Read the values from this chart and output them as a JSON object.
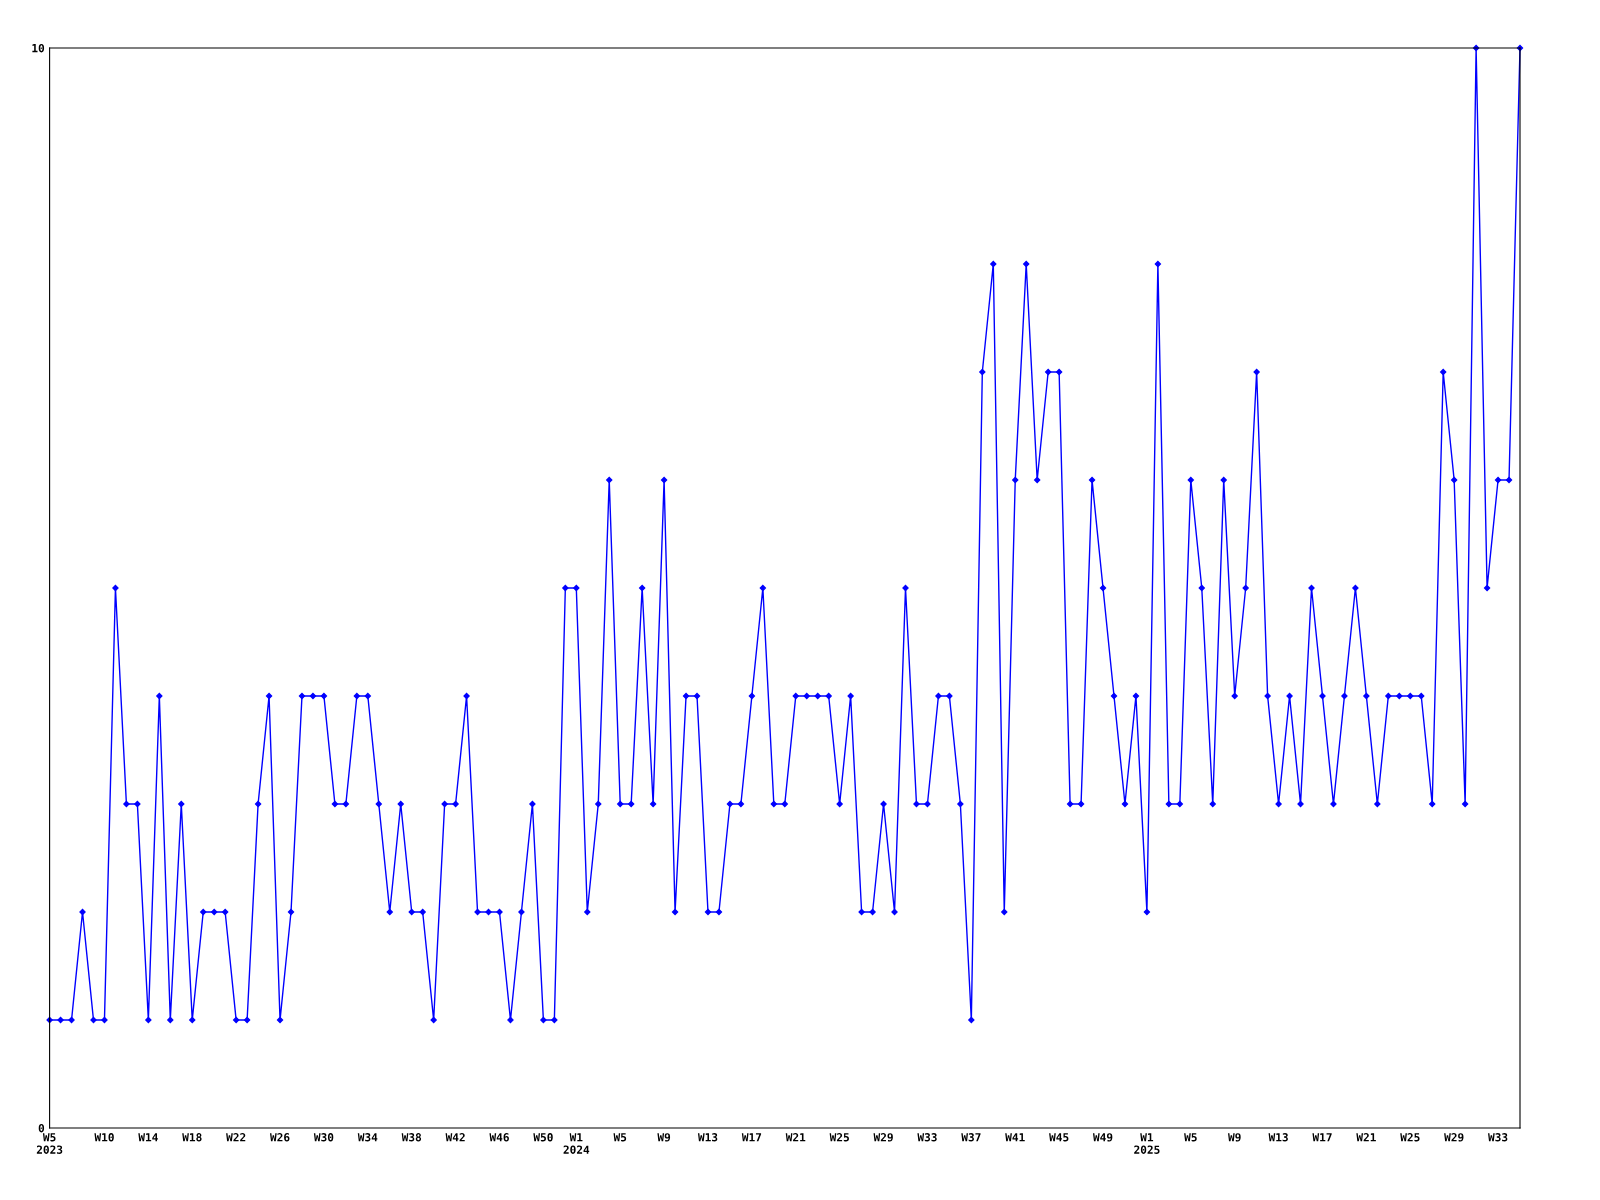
{
  "chart_data": {
    "type": "line",
    "categories": [
      "W5\n2023",
      null,
      null,
      null,
      null,
      "W10",
      null,
      null,
      null,
      "W14",
      null,
      null,
      null,
      "W18",
      null,
      null,
      null,
      "W22",
      null,
      null,
      null,
      "W26",
      null,
      null,
      null,
      "W30",
      null,
      null,
      null,
      "W34",
      null,
      null,
      null,
      "W38",
      null,
      null,
      null,
      "W42",
      null,
      null,
      null,
      "W46",
      null,
      null,
      null,
      "W50",
      null,
      null,
      "W1\n2024",
      null,
      null,
      null,
      "W5",
      null,
      null,
      null,
      "W9",
      null,
      null,
      null,
      "W13",
      null,
      null,
      null,
      "W17",
      null,
      null,
      null,
      "W21",
      null,
      null,
      null,
      "W25",
      null,
      null,
      null,
      "W29",
      null,
      null,
      null,
      "W33",
      null,
      null,
      null,
      "W37",
      null,
      null,
      null,
      "W41",
      null,
      null,
      null,
      "W45",
      null,
      null,
      null,
      "W49",
      null,
      null,
      null,
      "W1\n2025",
      null,
      null,
      null,
      "W5",
      null,
      null,
      null,
      "W9",
      null,
      null,
      null,
      "W13",
      null,
      null,
      null,
      "W17",
      null,
      null,
      null,
      "W21",
      null,
      null,
      null,
      "W25",
      null,
      null,
      null,
      "W29",
      null,
      null,
      null,
      "W33",
      null,
      null
    ],
    "series": [
      {
        "color": "#0000ff",
        "values": [
          1,
          1,
          1,
          2,
          1,
          1,
          5,
          3,
          3,
          1,
          4,
          1,
          3,
          1,
          2,
          2,
          2,
          1,
          1,
          3,
          4,
          1,
          2,
          4,
          4,
          4,
          3,
          3,
          4,
          4,
          3,
          2,
          3,
          2,
          2,
          1,
          3,
          3,
          4,
          2,
          2,
          2,
          1,
          2,
          3,
          1,
          1,
          5,
          5,
          2,
          3,
          6,
          3,
          3,
          5,
          3,
          6,
          2,
          4,
          4,
          2,
          2,
          3,
          3,
          4,
          5,
          3,
          3,
          4,
          4,
          4,
          4,
          3,
          4,
          2,
          2,
          3,
          2,
          5,
          3,
          3,
          4,
          4,
          3,
          1,
          7,
          8,
          2,
          6,
          8,
          6,
          7,
          7,
          3,
          3,
          6,
          5,
          4,
          3,
          4,
          2,
          8,
          3,
          3,
          6,
          5,
          3,
          6,
          4,
          5,
          7,
          4,
          3,
          4,
          3,
          5,
          4,
          3,
          4,
          5,
          4,
          3,
          4,
          4,
          4,
          4,
          3,
          7,
          6,
          3,
          10,
          5,
          6,
          6,
          10
        ]
      }
    ],
    "ylim": [
      0,
      10
    ],
    "yticks": [
      0,
      10
    ],
    "grid": false,
    "marker": "diamond",
    "line_style": "solid"
  }
}
